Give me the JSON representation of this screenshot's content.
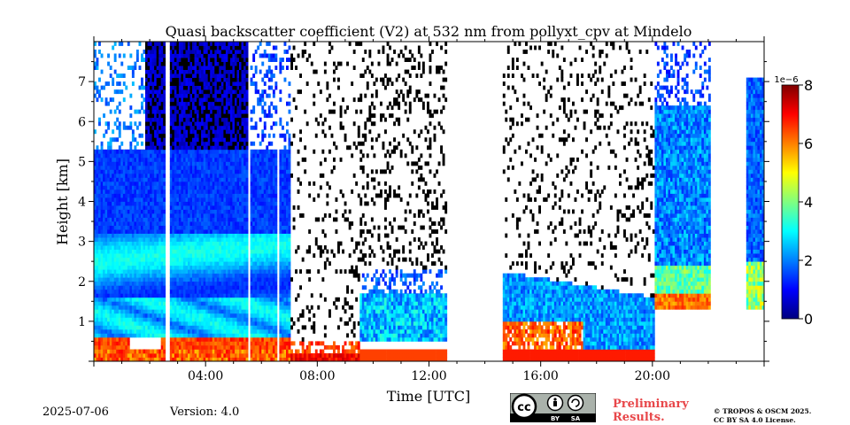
{
  "chart_data": {
    "type": "heatmap",
    "title": "Quasi backscatter coefficient (V2) at 532 nm from pollyxt_cpv at Mindelo",
    "xlabel": "Time [UTC]",
    "ylabel": "Height [km]",
    "x_ticks": [
      "04:00",
      "08:00",
      "12:00",
      "16:00",
      "20:00"
    ],
    "x_tick_hours": [
      4,
      8,
      12,
      16,
      20
    ],
    "xlim_hours": [
      0,
      24
    ],
    "y_ticks": [
      "1",
      "2",
      "3",
      "4",
      "5",
      "6",
      "7"
    ],
    "y_tick_values": [
      1,
      2,
      3,
      4,
      5,
      6,
      7
    ],
    "ylim_km": [
      0,
      8
    ],
    "colorbar": {
      "scale_label": "1e−6",
      "ticks": [
        "0",
        "2",
        "4",
        "6",
        "8"
      ],
      "tick_values": [
        0,
        2,
        4,
        6,
        8
      ],
      "range": [
        0,
        8
      ],
      "colormap": "jet"
    },
    "data_gaps_hours": [
      [
        12.6,
        14.6
      ],
      [
        22.0,
        23.3
      ]
    ],
    "features": [
      {
        "hours": [
          0,
          7
        ],
        "layer_km": [
          0,
          5.5
        ],
        "kind": "aerosol layer"
      },
      {
        "hours": [
          9.5,
          12.5
        ],
        "layer_km": [
          0.5,
          1.7
        ],
        "kind": "aerosol layer"
      },
      {
        "hours": [
          14.6,
          19
        ],
        "layer_km": [
          0.5,
          2.2
        ],
        "kind": "aerosol layer"
      },
      {
        "hours": [
          20,
          22
        ],
        "layer_km": [
          1.3,
          6.3
        ],
        "kind": "aerosol layer"
      },
      {
        "hours": [
          23.3,
          24
        ],
        "layer_km": [
          1.3,
          7.0
        ],
        "kind": "aerosol layer"
      }
    ]
  },
  "footer": {
    "date": "2025-07-06",
    "version": "Version: 4.0",
    "preliminary_line1": "Preliminary",
    "preliminary_line2": "Results.",
    "copyright_line1": "© TROPOS & OSCM 2025.",
    "copyright_line2": "CC BY SA 4.0 License.",
    "license_badge": "cc-by-sa-icon",
    "badge_by": "BY",
    "badge_sa": "SA"
  }
}
